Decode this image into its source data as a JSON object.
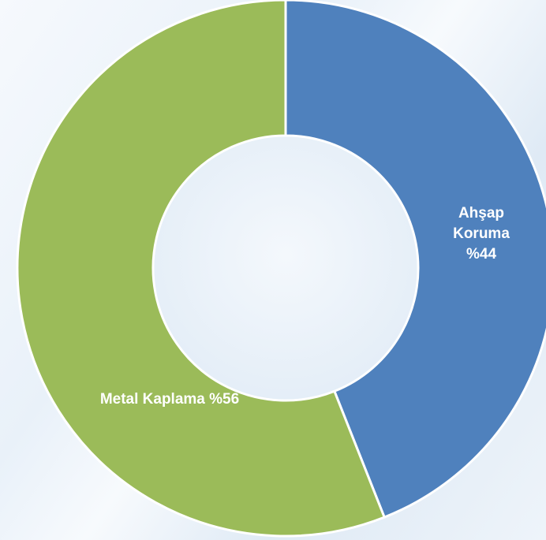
{
  "chart_data": {
    "type": "donut",
    "categories": [
      "Ahşap Koruma",
      "Metal Kaplama"
    ],
    "values": [
      44,
      56
    ],
    "value_labels": [
      "%44",
      "%56"
    ],
    "colors": [
      "#4f81bd",
      "#9bbb59"
    ]
  }
}
